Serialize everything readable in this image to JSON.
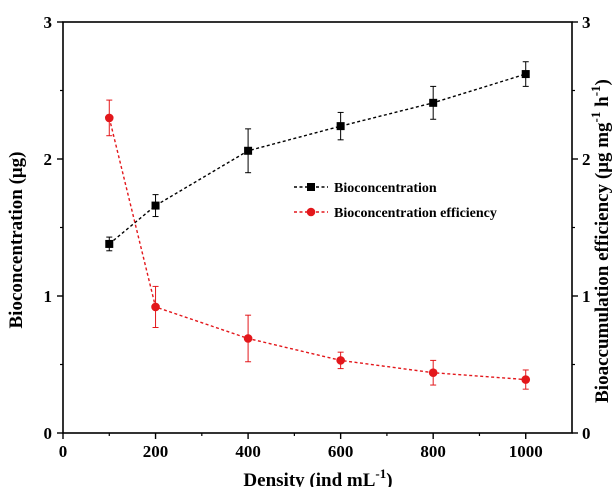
{
  "chart_data": {
    "type": "line",
    "xlabel": "Density (ind mL",
    "xlabel_sup": "-1",
    "xlabel_close": ")",
    "ylabel": "Bioconcentration  (μg)",
    "y2label_main": "Bioaccumulation efficiency (μg mg",
    "y2label_sup1": "-1",
    "y2label_mid": " h",
    "y2label_sup2": "-1",
    "y2label_close": ")",
    "xlim": [
      0,
      1100
    ],
    "ylim": [
      0,
      3
    ],
    "y2lim": [
      0,
      3
    ],
    "x_ticks": [
      "0",
      "200",
      "400",
      "600",
      "800",
      "1000"
    ],
    "y_ticks": [
      "0",
      "1",
      "2",
      "3"
    ],
    "y2_ticks": [
      "0",
      "1",
      "2",
      "3"
    ],
    "grid": false,
    "legend_position": "center-right",
    "series": [
      {
        "name": "Bioconcentration",
        "axis": "left",
        "color": "#000000",
        "marker": "square",
        "line": "dashed",
        "x": [
          100,
          200,
          400,
          600,
          800,
          1000
        ],
        "y": [
          1.38,
          1.66,
          2.06,
          2.24,
          2.41,
          2.62
        ],
        "err": [
          0.05,
          0.08,
          0.16,
          0.1,
          0.12,
          0.09
        ]
      },
      {
        "name": "Bioconcentration efficiency",
        "axis": "right",
        "color": "#e3171b",
        "marker": "circle",
        "line": "dashed",
        "x": [
          100,
          200,
          400,
          600,
          800,
          1000
        ],
        "y": [
          2.3,
          0.92,
          0.69,
          0.53,
          0.44,
          0.39
        ],
        "err": [
          0.13,
          0.15,
          0.17,
          0.06,
          0.09,
          0.07
        ]
      }
    ]
  }
}
